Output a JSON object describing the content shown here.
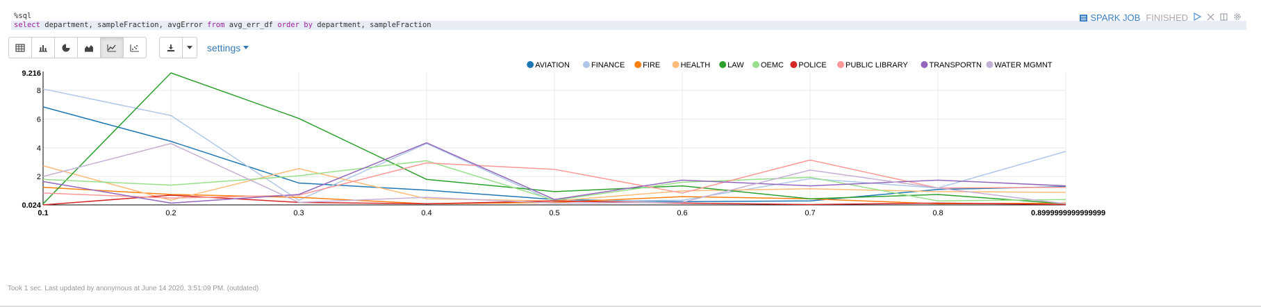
{
  "editor": {
    "line1": "%sql",
    "line2": [
      {
        "t": "select",
        "kw": true
      },
      {
        "t": " department, sampleFraction, avgError ",
        "kw": false
      },
      {
        "t": "from",
        "kw": true
      },
      {
        "t": " avg_err_df ",
        "kw": false
      },
      {
        "t": "order",
        "kw": true
      },
      {
        "t": " ",
        "kw": false
      },
      {
        "t": "by",
        "kw": true
      },
      {
        "t": " department, sampleFraction",
        "kw": false
      }
    ]
  },
  "status": {
    "spark_label": "SPARK JOB",
    "state": "FINISHED"
  },
  "toolbar": {
    "viz_buttons": [
      {
        "name": "table-view-button",
        "icon": "table-icon"
      },
      {
        "name": "bar-chart-button",
        "icon": "bar-chart-icon"
      },
      {
        "name": "pie-chart-button",
        "icon": "pie-chart-icon"
      },
      {
        "name": "area-chart-button",
        "icon": "area-chart-icon"
      },
      {
        "name": "line-chart-button",
        "icon": "line-chart-icon",
        "active": true
      },
      {
        "name": "scatter-chart-button",
        "icon": "scatter-chart-icon"
      }
    ],
    "settings_label": "settings"
  },
  "chart_data": {
    "type": "line",
    "title": "",
    "xlabel": "",
    "ylabel": "",
    "x": [
      0.1,
      0.2,
      0.3,
      0.4,
      0.5,
      0.6,
      0.7,
      0.8,
      0.8999999999999999
    ],
    "x_tick_labels": [
      "0.1",
      "0.2",
      "0.3",
      "0.4",
      "0.5",
      "0.6",
      "0.7",
      "0.8",
      "0.8999999999999999"
    ],
    "ylim": [
      0.024,
      9.216
    ],
    "y_ticks": [
      2,
      4,
      6,
      8
    ],
    "y_min_label": "0.024",
    "y_max_label": "9.216",
    "grid": true,
    "legend_position": "top-right",
    "series": [
      {
        "name": "AVIATION",
        "color": "#1f77b4",
        "values": [
          6.85,
          4.45,
          1.55,
          1.05,
          0.4,
          0.25,
          0.3,
          1.1,
          1.3
        ]
      },
      {
        "name": "FINANCE",
        "color": "#aec7e8",
        "values": [
          8.1,
          6.25,
          0.35,
          4.3,
          0.25,
          0.35,
          1.85,
          1.2,
          3.75
        ]
      },
      {
        "name": "FIRE",
        "color": "#ff7f0e",
        "values": [
          1.25,
          0.75,
          0.55,
          0.1,
          0.2,
          0.6,
          0.45,
          0.1,
          0.15
        ]
      },
      {
        "name": "HEALTH",
        "color": "#ffbb78",
        "values": [
          2.75,
          0.35,
          2.55,
          0.45,
          0.3,
          1.0,
          1.15,
          0.95,
          0.9
        ]
      },
      {
        "name": "LAW",
        "color": "#2ca02c",
        "values": [
          0.1,
          9.216,
          6.05,
          1.8,
          0.95,
          1.35,
          0.45,
          0.75,
          0.1
        ]
      },
      {
        "name": "OEMC",
        "color": "#98df8a",
        "values": [
          1.8,
          1.4,
          2.05,
          3.1,
          0.35,
          1.6,
          1.95,
          0.3,
          0.4
        ]
      },
      {
        "name": "POLICE",
        "color": "#d62728",
        "values": [
          0.024,
          0.7,
          0.2,
          0.1,
          0.3,
          0.15,
          0.05,
          0.15,
          0.05
        ]
      },
      {
        "name": "PUBLIC LIBRARY",
        "color": "#ff9896",
        "values": [
          0.85,
          0.5,
          0.7,
          2.95,
          2.5,
          0.85,
          3.15,
          1.2,
          1.25
        ]
      },
      {
        "name": "TRANSPORTN",
        "color": "#9467bd",
        "values": [
          1.65,
          0.15,
          0.75,
          4.35,
          0.4,
          1.75,
          1.35,
          1.75,
          1.35
        ]
      },
      {
        "name": "WATER MGMNT",
        "color": "#c5b0d5",
        "values": [
          2.0,
          4.3,
          0.2,
          0.55,
          0.15,
          0.2,
          2.45,
          1.2,
          0.1
        ]
      }
    ]
  },
  "footer": {
    "text": "Took 1 sec. Last updated by anonymous at June 14 2020, 3:51:09 PM. (outdated)"
  },
  "colors": {
    "accent": "#337ab7",
    "editor_highlight": "#e8edf5"
  }
}
